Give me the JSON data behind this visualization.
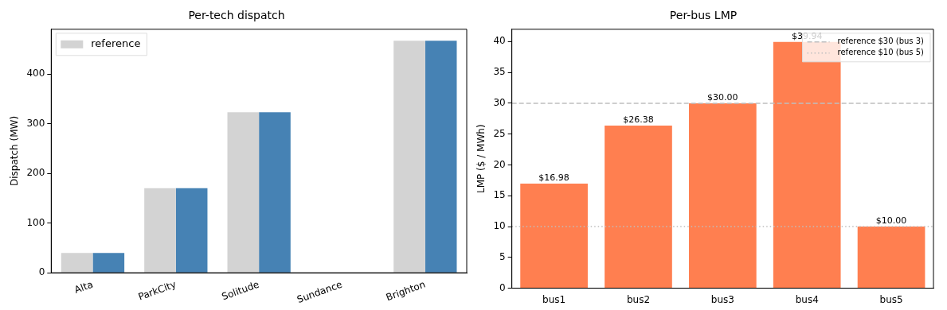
{
  "chart_data": [
    {
      "type": "bar",
      "title": "Per-tech dispatch",
      "ylabel": "Dispatch (MW)",
      "categories": [
        "Alta",
        "ParkCity",
        "Solitude",
        "Sundance",
        "Brighton"
      ],
      "series": [
        {
          "name": "reference",
          "color": "#d3d3d3",
          "values": [
            40,
            170,
            323,
            0,
            467
          ]
        },
        {
          "color": "#4682b4",
          "values": [
            40,
            170,
            323,
            0,
            467
          ]
        }
      ],
      "ylim": [
        0,
        490
      ],
      "yticks": [
        0,
        100,
        200,
        300,
        400
      ],
      "legend": "top left"
    },
    {
      "type": "bar",
      "title": "Per-bus LMP",
      "ylabel": "LMP ($ / MWh)",
      "categories": [
        "bus1",
        "bus2",
        "bus3",
        "bus4",
        "bus5"
      ],
      "values": [
        16.98,
        26.38,
        30.0,
        39.94,
        10.0
      ],
      "color": "#ff7f50",
      "value_labels": [
        "$16.98",
        "$26.38",
        "$30.00",
        "$39.94",
        "$10.00"
      ],
      "ylim": [
        0,
        42
      ],
      "yticks": [
        0,
        5,
        10,
        15,
        20,
        25,
        30,
        35,
        40
      ],
      "ref_lines": [
        {
          "axis": "y",
          "value": 30,
          "label": "reference $30 (bus 3)",
          "color": "#bfbfbf",
          "line_style": "dashed"
        },
        {
          "axis": "y",
          "value": 10,
          "label": "reference $10 (bus 5)",
          "color": "#bfbfbf",
          "line_style": "dotted"
        }
      ],
      "legend": "top right"
    }
  ]
}
